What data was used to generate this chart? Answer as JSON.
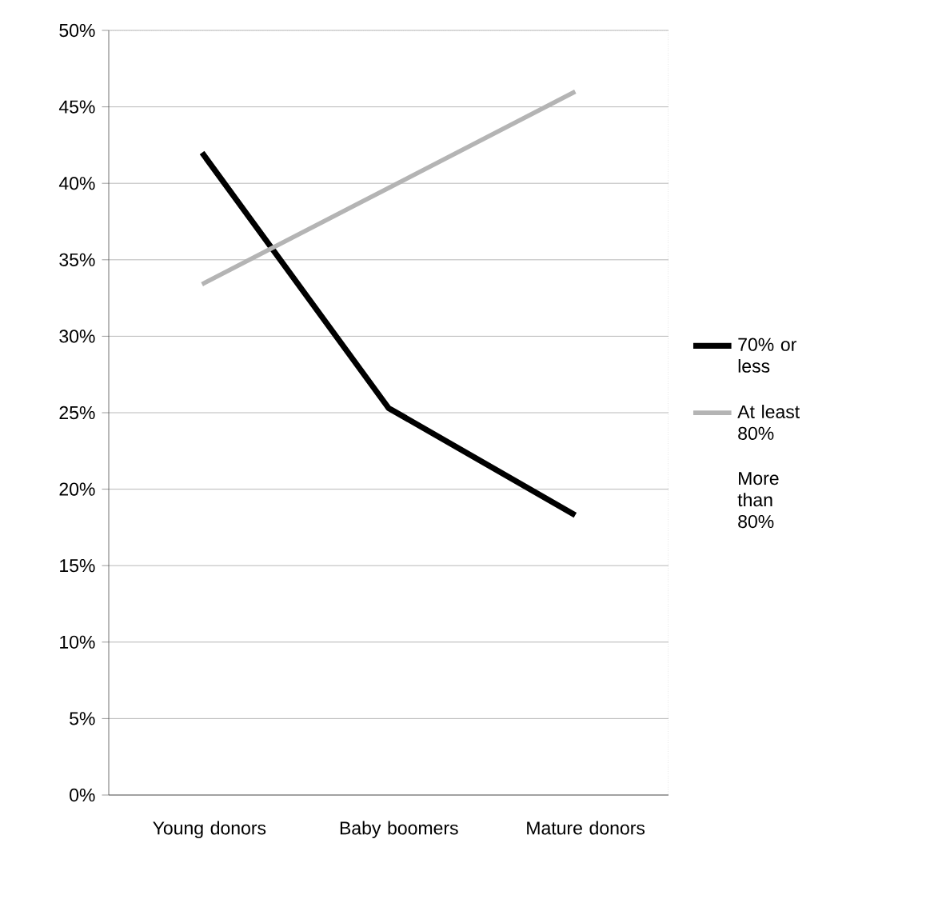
{
  "chart_data": {
    "type": "line",
    "categories": [
      "Young donors",
      "Baby boomers",
      "Mature donors"
    ],
    "series": [
      {
        "name": "70% or less",
        "color": "#000000",
        "values": [
          42,
          25.3,
          18.3
        ]
      },
      {
        "name": "At least 80%",
        "color": "#b4b4b4",
        "values": [
          33.4,
          39.7,
          46
        ]
      },
      {
        "name": "More than 80%",
        "values": [
          null,
          null,
          null
        ]
      }
    ],
    "ylim": [
      0,
      50
    ],
    "yticks": [
      {
        "value": 0,
        "label": "0%"
      },
      {
        "value": 5,
        "label": "5%"
      },
      {
        "value": 10,
        "label": "10%"
      },
      {
        "value": 15,
        "label": "15%"
      },
      {
        "value": 20,
        "label": "20%"
      },
      {
        "value": 25,
        "label": "25%"
      },
      {
        "value": 30,
        "label": "30%"
      },
      {
        "value": 35,
        "label": "35%"
      },
      {
        "value": 40,
        "label": "40%"
      },
      {
        "value": 45,
        "label": "45%"
      },
      {
        "value": 50,
        "label": "50%"
      }
    ],
    "grid": "y",
    "legend": "right",
    "marker": "none",
    "line_style": "solid"
  }
}
